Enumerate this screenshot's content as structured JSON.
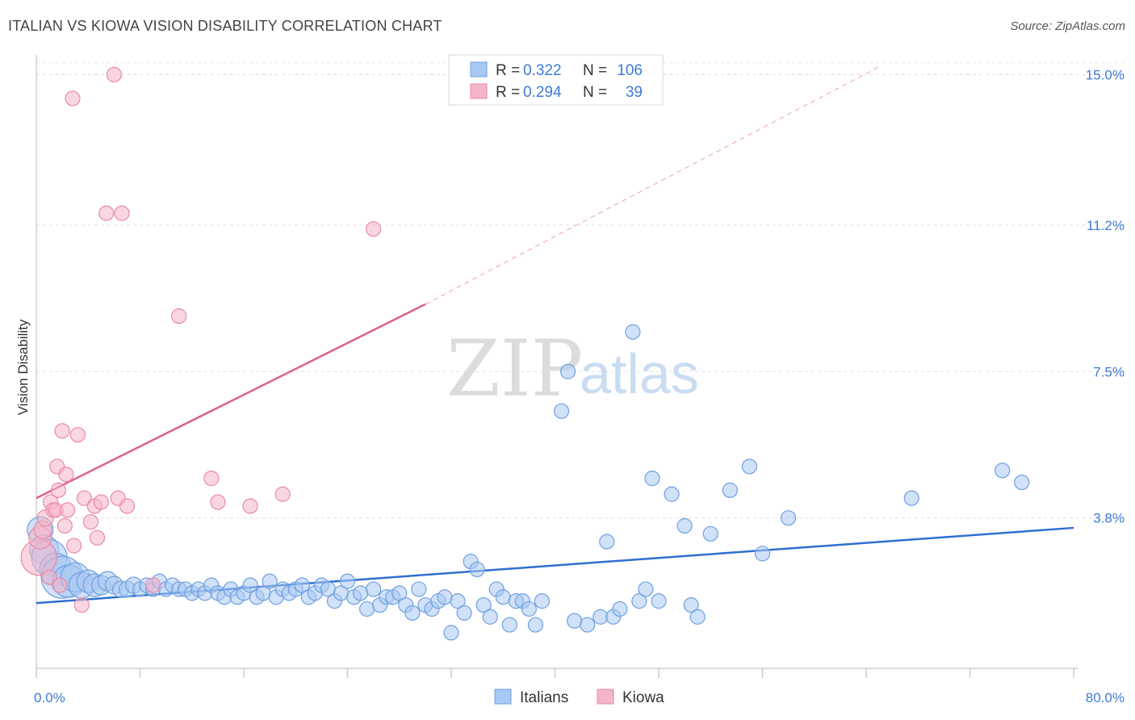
{
  "title": "ITALIAN VS KIOWA VISION DISABILITY CORRELATION CHART",
  "source": "Source: ZipAtlas.com",
  "watermark": {
    "zip": "ZIP",
    "atlas": "atlas"
  },
  "legend": {
    "rows": [
      {
        "r_label": "R =",
        "r_value": "0.322",
        "n_label": "N =",
        "n_value": "106",
        "color": "#a9c9f2"
      },
      {
        "r_label": "R =",
        "r_value": "0.294",
        "n_label": "N =",
        "n_value": "39",
        "color": "#f5b5c9"
      }
    ]
  },
  "bottom_legend": [
    {
      "label": "Italians",
      "color": "#a9c9f2"
    },
    {
      "label": "Kiowa",
      "color": "#f5b5c9"
    }
  ],
  "chart_data": {
    "type": "scatter",
    "title": "ITALIAN VS KIOWA VISION DISABILITY CORRELATION CHART",
    "ylabel": "Vision Disability",
    "xlabel": "",
    "xlim": [
      0,
      80
    ],
    "ylim": [
      0,
      15.5
    ],
    "x_tick_labels": [
      "0.0%",
      "80.0%"
    ],
    "y_ticks": [
      3.8,
      7.5,
      11.2,
      15.0
    ],
    "y_tick_labels": [
      "3.8%",
      "7.5%",
      "11.2%",
      "15.0%"
    ],
    "grid": "horizontal dashed",
    "series": [
      {
        "name": "Italians",
        "color": "#a9c9f2",
        "edge": "#6fa0e0",
        "trend": {
          "x": [
            0,
            80
          ],
          "y": [
            1.65,
            3.55
          ],
          "color": "#2f6fd0"
        },
        "points": [
          [
            0.3,
            3.5,
            16
          ],
          [
            0.6,
            3.0,
            18
          ],
          [
            1.0,
            2.8,
            22
          ],
          [
            1.5,
            2.5,
            20
          ],
          [
            2.0,
            2.3,
            26
          ],
          [
            2.5,
            2.2,
            20
          ],
          [
            3.0,
            2.3,
            18
          ],
          [
            3.5,
            2.1,
            16
          ],
          [
            4.0,
            2.2,
            14
          ],
          [
            4.5,
            2.1,
            14
          ],
          [
            5.0,
            2.1,
            12
          ],
          [
            5.5,
            2.2,
            12
          ],
          [
            6.0,
            2.1,
            11
          ],
          [
            6.5,
            2.0,
            10
          ],
          [
            7.0,
            2.0,
            10
          ],
          [
            7.5,
            2.1,
            10
          ],
          [
            8.0,
            2.0,
            9
          ],
          [
            8.5,
            2.1,
            9
          ],
          [
            9.0,
            2.0,
            9
          ],
          [
            9.5,
            2.2,
            9
          ],
          [
            10.0,
            2.0,
            9
          ],
          [
            10.5,
            2.1,
            9
          ],
          [
            11.0,
            2.0,
            9
          ],
          [
            11.5,
            2.0,
            9
          ],
          [
            12.0,
            1.9,
            9
          ],
          [
            12.5,
            2.0,
            9
          ],
          [
            13.0,
            1.9,
            9
          ],
          [
            13.5,
            2.1,
            9
          ],
          [
            14.0,
            1.9,
            9
          ],
          [
            14.5,
            1.8,
            9
          ],
          [
            15.0,
            2.0,
            9
          ],
          [
            15.5,
            1.8,
            9
          ],
          [
            16.0,
            1.9,
            9
          ],
          [
            16.5,
            2.1,
            9
          ],
          [
            17.0,
            1.8,
            9
          ],
          [
            17.5,
            1.9,
            9
          ],
          [
            18.0,
            2.2,
            9
          ],
          [
            18.5,
            1.8,
            9
          ],
          [
            19.0,
            2.0,
            9
          ],
          [
            19.5,
            1.9,
            9
          ],
          [
            20.0,
            2.0,
            9
          ],
          [
            20.5,
            2.1,
            9
          ],
          [
            21.0,
            1.8,
            9
          ],
          [
            21.5,
            1.9,
            9
          ],
          [
            22.0,
            2.1,
            9
          ],
          [
            22.5,
            2.0,
            9
          ],
          [
            23.0,
            1.7,
            9
          ],
          [
            23.5,
            1.9,
            9
          ],
          [
            24.0,
            2.2,
            9
          ],
          [
            24.5,
            1.8,
            9
          ],
          [
            25.0,
            1.9,
            9
          ],
          [
            25.5,
            1.5,
            9
          ],
          [
            26.0,
            2.0,
            9
          ],
          [
            26.5,
            1.6,
            9
          ],
          [
            27.0,
            1.8,
            9
          ],
          [
            27.5,
            1.8,
            9
          ],
          [
            28.0,
            1.9,
            9
          ],
          [
            28.5,
            1.6,
            9
          ],
          [
            29.0,
            1.4,
            9
          ],
          [
            29.5,
            2.0,
            9
          ],
          [
            30.0,
            1.6,
            9
          ],
          [
            30.5,
            1.5,
            9
          ],
          [
            31.0,
            1.7,
            9
          ],
          [
            31.5,
            1.8,
            9
          ],
          [
            32.0,
            0.9,
            9
          ],
          [
            32.5,
            1.7,
            9
          ],
          [
            33.0,
            1.4,
            9
          ],
          [
            33.5,
            2.7,
            9
          ],
          [
            34.0,
            2.5,
            9
          ],
          [
            34.5,
            1.6,
            9
          ],
          [
            35.0,
            1.3,
            9
          ],
          [
            35.5,
            2.0,
            9
          ],
          [
            36.0,
            1.8,
            9
          ],
          [
            36.5,
            1.1,
            9
          ],
          [
            37.0,
            1.7,
            9
          ],
          [
            37.5,
            1.7,
            9
          ],
          [
            38.0,
            1.5,
            9
          ],
          [
            38.5,
            1.1,
            9
          ],
          [
            39.0,
            1.7,
            9
          ],
          [
            40.5,
            6.5,
            9
          ],
          [
            41.0,
            7.5,
            9
          ],
          [
            41.5,
            1.2,
            9
          ],
          [
            42.5,
            1.1,
            9
          ],
          [
            43.5,
            1.3,
            9
          ],
          [
            44.0,
            3.2,
            9
          ],
          [
            44.5,
            1.3,
            9
          ],
          [
            45.0,
            1.5,
            9
          ],
          [
            46.0,
            8.5,
            9
          ],
          [
            46.5,
            1.7,
            9
          ],
          [
            47.0,
            2.0,
            9
          ],
          [
            47.5,
            4.8,
            9
          ],
          [
            48.0,
            1.7,
            9
          ],
          [
            49.0,
            4.4,
            9
          ],
          [
            50.0,
            3.6,
            9
          ],
          [
            50.5,
            1.6,
            9
          ],
          [
            51.0,
            1.3,
            9
          ],
          [
            52.0,
            3.4,
            9
          ],
          [
            53.5,
            4.5,
            9
          ],
          [
            55.0,
            5.1,
            9
          ],
          [
            56.0,
            2.9,
            9
          ],
          [
            58.0,
            3.8,
            9
          ],
          [
            67.5,
            4.3,
            9
          ],
          [
            74.5,
            5.0,
            9
          ],
          [
            76.0,
            4.7,
            9
          ]
        ]
      },
      {
        "name": "Kiowa",
        "color": "#f5b5c9",
        "edge": "#e88aa8",
        "trend": {
          "x": [
            0,
            30
          ],
          "y": [
            4.3,
            9.2
          ],
          "color": "#e0608a",
          "dashed_to": [
            65,
            15.2
          ]
        },
        "points": [
          [
            0.2,
            2.8,
            22
          ],
          [
            0.3,
            3.3,
            14
          ],
          [
            0.5,
            3.5,
            11
          ],
          [
            0.7,
            3.8,
            10
          ],
          [
            1.0,
            2.3,
            9
          ],
          [
            1.1,
            4.2,
            9
          ],
          [
            1.3,
            4.0,
            9
          ],
          [
            1.5,
            4.0,
            9
          ],
          [
            1.6,
            5.1,
            9
          ],
          [
            1.7,
            4.5,
            9
          ],
          [
            1.8,
            2.1,
            9
          ],
          [
            2.0,
            6.0,
            9
          ],
          [
            2.2,
            3.6,
            9
          ],
          [
            2.3,
            4.9,
            9
          ],
          [
            2.4,
            4.0,
            9
          ],
          [
            2.8,
            14.4,
            9
          ],
          [
            2.9,
            3.1,
            9
          ],
          [
            3.2,
            5.9,
            9
          ],
          [
            3.5,
            1.6,
            9
          ],
          [
            3.7,
            4.3,
            9
          ],
          [
            4.2,
            3.7,
            9
          ],
          [
            4.5,
            4.1,
            9
          ],
          [
            4.7,
            3.3,
            9
          ],
          [
            5.0,
            4.2,
            9
          ],
          [
            5.4,
            11.5,
            9
          ],
          [
            6.0,
            15.0,
            9
          ],
          [
            6.3,
            4.3,
            9
          ],
          [
            6.6,
            11.5,
            9
          ],
          [
            7.0,
            4.1,
            9
          ],
          [
            9.0,
            2.1,
            9
          ],
          [
            11.0,
            8.9,
            9
          ],
          [
            13.5,
            4.8,
            9
          ],
          [
            14.0,
            4.2,
            9
          ],
          [
            16.5,
            4.1,
            9
          ],
          [
            19.0,
            4.4,
            9
          ],
          [
            26.0,
            11.1,
            9
          ]
        ]
      }
    ]
  }
}
